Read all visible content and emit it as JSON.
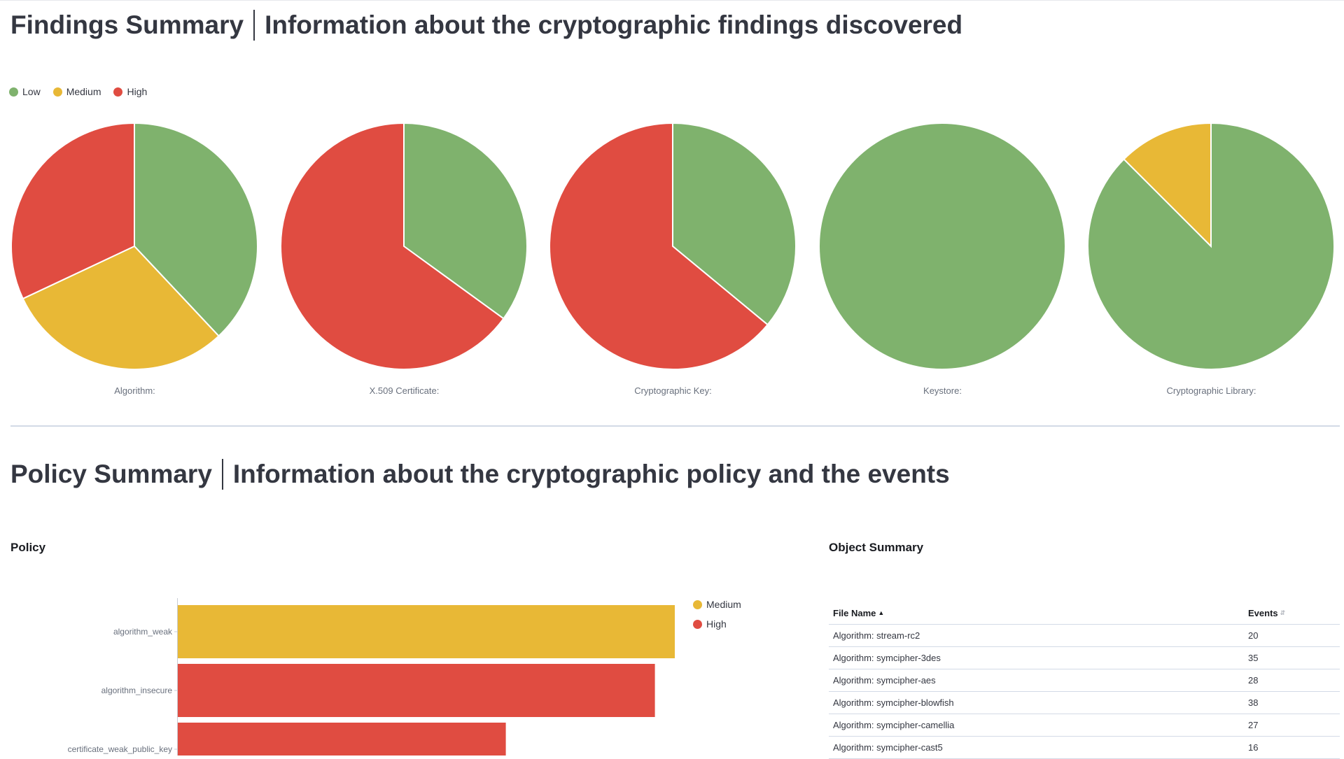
{
  "findings_summary": {
    "title": "Findings Summary",
    "subtitle": "Information about the cryptographic findings discovered"
  },
  "severity_colors": {
    "Low": "#7fb26d",
    "Medium": "#e8b836",
    "High": "#e04c41"
  },
  "findings_legend": [
    "Low",
    "Medium",
    "High"
  ],
  "policy_summary": {
    "title": "Policy Summary",
    "subtitle": "Information about the cryptographic policy and the events"
  },
  "policy_panel": {
    "title": "Policy"
  },
  "policy_legend": [
    "Medium",
    "High"
  ],
  "object_summary": {
    "title": "Object Summary",
    "columns": {
      "file_name": "File Name",
      "events": "Events"
    },
    "sort": {
      "file_name": "ascending",
      "events": "unsorted"
    },
    "rows": [
      {
        "file_name": "Algorithm: stream-rc2",
        "events": "20"
      },
      {
        "file_name": "Algorithm: symcipher-3des",
        "events": "35"
      },
      {
        "file_name": "Algorithm: symcipher-aes",
        "events": "28"
      },
      {
        "file_name": "Algorithm: symcipher-blowfish",
        "events": "38"
      },
      {
        "file_name": "Algorithm: symcipher-camellia",
        "events": "27"
      },
      {
        "file_name": "Algorithm: symcipher-cast5",
        "events": "16"
      }
    ]
  },
  "chart_data": [
    {
      "type": "pie",
      "xlabel": "Algorithm:",
      "categories": [
        "Low",
        "Medium",
        "High"
      ],
      "values": [
        38,
        30,
        32
      ]
    },
    {
      "type": "pie",
      "xlabel": "X.509 Certificate:",
      "categories": [
        "Low",
        "Medium",
        "High"
      ],
      "values": [
        35,
        0,
        65
      ]
    },
    {
      "type": "pie",
      "xlabel": "Cryptographic Key:",
      "categories": [
        "Low",
        "Medium",
        "High"
      ],
      "values": [
        36,
        0,
        64
      ]
    },
    {
      "type": "pie",
      "xlabel": "Keystore:",
      "categories": [
        "Low",
        "Medium",
        "High"
      ],
      "values": [
        100,
        0,
        0
      ]
    },
    {
      "type": "pie",
      "xlabel": "Cryptographic Library:",
      "categories": [
        "Low",
        "Medium",
        "High"
      ],
      "values": [
        87.5,
        12.5,
        0
      ]
    },
    {
      "type": "bar",
      "orientation": "horizontal",
      "categories": [
        "algorithm_weak",
        "algorithm_insecure",
        "certificate_weak_public_key"
      ],
      "values": [
        100,
        96,
        66
      ],
      "series_by_category": [
        "Medium",
        "High",
        "High"
      ],
      "legend": "right"
    }
  ]
}
